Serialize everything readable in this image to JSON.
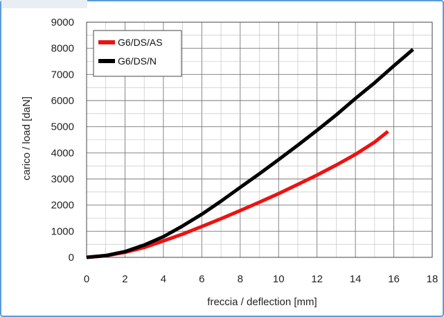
{
  "chart_data": {
    "type": "line",
    "xlabel": "freccia / deflection [mm]",
    "ylabel": "carico / load [daN]",
    "xlim": [
      0,
      18
    ],
    "ylim": [
      0,
      9000
    ],
    "x_ticks": [
      "0",
      "2",
      "4",
      "6",
      "8",
      "10",
      "12",
      "14",
      "16",
      "18"
    ],
    "y_ticks": [
      "0",
      "1000",
      "2000",
      "3000",
      "4000",
      "5000",
      "6000",
      "7000",
      "8000",
      "9000"
    ],
    "grid": "on",
    "legend_position": "top-left",
    "series": [
      {
        "name": "G6/DS/AS",
        "color": "#ee1111",
        "points": [
          [
            0,
            0
          ],
          [
            1,
            60
          ],
          [
            2,
            190
          ],
          [
            3,
            380
          ],
          [
            4,
            630
          ],
          [
            5,
            890
          ],
          [
            6,
            1180
          ],
          [
            7,
            1480
          ],
          [
            8,
            1790
          ],
          [
            9,
            2110
          ],
          [
            10,
            2440
          ],
          [
            11,
            2790
          ],
          [
            12,
            3150
          ],
          [
            13,
            3530
          ],
          [
            14,
            3940
          ],
          [
            15,
            4410
          ],
          [
            15.7,
            4820
          ]
        ]
      },
      {
        "name": "G6/DS/N",
        "color": "#000000",
        "points": [
          [
            0,
            0
          ],
          [
            1,
            70
          ],
          [
            2,
            220
          ],
          [
            3,
            470
          ],
          [
            4,
            790
          ],
          [
            5,
            1200
          ],
          [
            6,
            1650
          ],
          [
            7,
            2150
          ],
          [
            8,
            2680
          ],
          [
            9,
            3200
          ],
          [
            10,
            3740
          ],
          [
            11,
            4290
          ],
          [
            12,
            4860
          ],
          [
            13,
            5450
          ],
          [
            14,
            6080
          ],
          [
            15,
            6680
          ],
          [
            16,
            7330
          ],
          [
            17,
            7960
          ]
        ]
      }
    ]
  }
}
